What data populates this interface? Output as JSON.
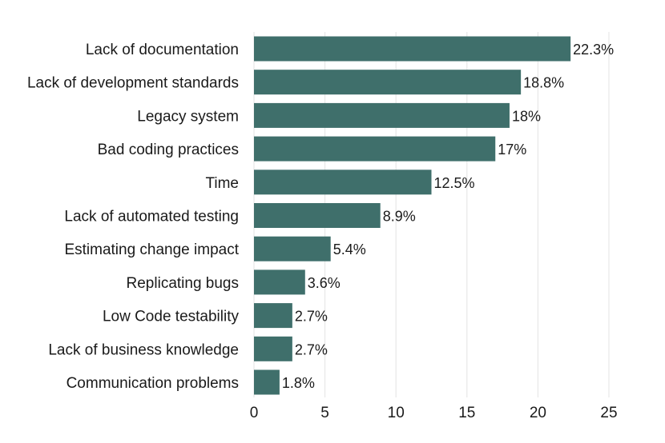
{
  "chart_data": {
    "type": "bar",
    "orientation": "horizontal",
    "categories": [
      "Lack of documentation",
      "Lack of development standards",
      "Legacy system",
      "Bad coding practices",
      "Time",
      "Lack of automated testing",
      "Estimating change impact",
      "Replicating bugs",
      "Low Code testability",
      "Lack of business knowledge",
      "Communication problems"
    ],
    "values": [
      22.3,
      18.8,
      18,
      17,
      12.5,
      8.9,
      5.4,
      3.6,
      2.7,
      2.7,
      1.8
    ],
    "value_labels": [
      "22.3%",
      "18.8%",
      "18%",
      "17%",
      "12.5%",
      "8.9%",
      "5.4%",
      "3.6%",
      "2.7%",
      "2.7%",
      "1.8%"
    ],
    "xlim": [
      0,
      25
    ],
    "xticks": [
      0,
      5,
      10,
      15,
      20,
      25
    ],
    "grid": "vertical",
    "bar_color": "#3f6f6b",
    "title": "",
    "xlabel": "",
    "ylabel": ""
  }
}
